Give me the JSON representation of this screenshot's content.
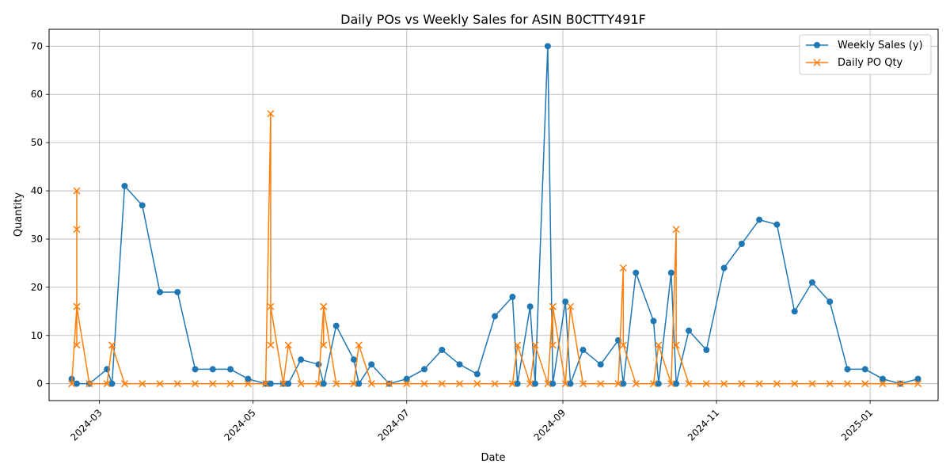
{
  "chart_data": {
    "type": "line",
    "title": "Daily POs vs Weekly Sales for ASIN B0CTTY491F",
    "xlabel": "Date",
    "ylabel": "Quantity",
    "x_type": "date",
    "xlim": [
      "2024-02-10",
      "2025-01-28"
    ],
    "ylim": [
      -3.5,
      73.5
    ],
    "x_ticks": [
      "2024-03-01",
      "2024-05-01",
      "2024-07-01",
      "2024-09-01",
      "2024-11-01",
      "2025-01-01"
    ],
    "x_tick_labels": [
      "2024-03",
      "2024-05",
      "2024-07",
      "2024-09",
      "2024-11",
      "2025-01"
    ],
    "y_ticks": [
      0,
      10,
      20,
      30,
      40,
      50,
      60,
      70
    ],
    "y_tick_labels": [
      "0",
      "10",
      "20",
      "30",
      "40",
      "50",
      "60",
      "70"
    ],
    "grid": true,
    "legend_position": "top-right",
    "series": [
      {
        "name": "Weekly Sales (y)",
        "color": "#1f77b4",
        "marker": "circle",
        "points": [
          [
            "2024-02-19",
            1
          ],
          [
            "2024-02-21",
            0
          ],
          [
            "2024-02-26",
            0
          ],
          [
            "2024-03-04",
            3
          ],
          [
            "2024-03-06",
            0
          ],
          [
            "2024-03-11",
            41
          ],
          [
            "2024-03-18",
            37
          ],
          [
            "2024-03-25",
            19
          ],
          [
            "2024-04-01",
            19
          ],
          [
            "2024-04-08",
            3
          ],
          [
            "2024-04-15",
            3
          ],
          [
            "2024-04-22",
            3
          ],
          [
            "2024-04-29",
            1
          ],
          [
            "2024-05-06",
            0
          ],
          [
            "2024-05-08",
            0
          ],
          [
            "2024-05-13",
            0
          ],
          [
            "2024-05-15",
            0
          ],
          [
            "2024-05-20",
            5
          ],
          [
            "2024-05-27",
            4
          ],
          [
            "2024-05-29",
            0
          ],
          [
            "2024-06-03",
            12
          ],
          [
            "2024-06-10",
            5
          ],
          [
            "2024-06-12",
            0
          ],
          [
            "2024-06-17",
            4
          ],
          [
            "2024-06-24",
            0
          ],
          [
            "2024-07-01",
            1
          ],
          [
            "2024-07-08",
            3
          ],
          [
            "2024-07-15",
            7
          ],
          [
            "2024-07-22",
            4
          ],
          [
            "2024-07-29",
            2
          ],
          [
            "2024-08-05",
            14
          ],
          [
            "2024-08-12",
            18
          ],
          [
            "2024-08-14",
            0
          ],
          [
            "2024-08-19",
            16
          ],
          [
            "2024-08-21",
            0
          ],
          [
            "2024-08-26",
            70
          ],
          [
            "2024-08-28",
            0
          ],
          [
            "2024-09-02",
            17
          ],
          [
            "2024-09-04",
            0
          ],
          [
            "2024-09-09",
            7
          ],
          [
            "2024-09-16",
            4
          ],
          [
            "2024-09-23",
            9
          ],
          [
            "2024-09-25",
            0
          ],
          [
            "2024-09-30",
            23
          ],
          [
            "2024-10-07",
            13
          ],
          [
            "2024-10-09",
            0
          ],
          [
            "2024-10-14",
            23
          ],
          [
            "2024-10-16",
            0
          ],
          [
            "2024-10-21",
            11
          ],
          [
            "2024-10-28",
            7
          ],
          [
            "2024-11-04",
            24
          ],
          [
            "2024-11-11",
            29
          ],
          [
            "2024-11-18",
            34
          ],
          [
            "2024-11-25",
            33
          ],
          [
            "2024-12-02",
            15
          ],
          [
            "2024-12-09",
            21
          ],
          [
            "2024-12-16",
            17
          ],
          [
            "2024-12-23",
            3
          ],
          [
            "2024-12-30",
            3
          ],
          [
            "2025-01-06",
            1
          ],
          [
            "2025-01-13",
            0
          ],
          [
            "2025-01-20",
            1
          ]
        ]
      },
      {
        "name": "Daily PO Qty",
        "color": "#ff7f0e",
        "marker": "x",
        "points": [
          [
            "2024-02-19",
            0
          ],
          [
            "2024-02-21",
            16
          ],
          [
            "2024-02-21",
            32
          ],
          [
            "2024-02-21",
            40
          ],
          [
            "2024-02-21",
            8
          ],
          [
            "2024-02-21",
            16
          ],
          [
            "2024-02-26",
            0
          ],
          [
            "2024-03-04",
            0
          ],
          [
            "2024-03-06",
            8
          ],
          [
            "2024-03-06",
            8
          ],
          [
            "2024-03-11",
            0
          ],
          [
            "2024-03-18",
            0
          ],
          [
            "2024-03-25",
            0
          ],
          [
            "2024-04-01",
            0
          ],
          [
            "2024-04-08",
            0
          ],
          [
            "2024-04-15",
            0
          ],
          [
            "2024-04-22",
            0
          ],
          [
            "2024-04-29",
            0
          ],
          [
            "2024-05-06",
            0
          ],
          [
            "2024-05-08",
            56
          ],
          [
            "2024-05-08",
            8
          ],
          [
            "2024-05-08",
            16
          ],
          [
            "2024-05-13",
            0
          ],
          [
            "2024-05-15",
            8
          ],
          [
            "2024-05-20",
            0
          ],
          [
            "2024-05-27",
            0
          ],
          [
            "2024-05-29",
            16
          ],
          [
            "2024-05-29",
            8
          ],
          [
            "2024-05-29",
            16
          ],
          [
            "2024-06-03",
            0
          ],
          [
            "2024-06-10",
            0
          ],
          [
            "2024-06-12",
            8
          ],
          [
            "2024-06-17",
            0
          ],
          [
            "2024-06-24",
            0
          ],
          [
            "2024-07-01",
            0
          ],
          [
            "2024-07-08",
            0
          ],
          [
            "2024-07-15",
            0
          ],
          [
            "2024-07-22",
            0
          ],
          [
            "2024-07-29",
            0
          ],
          [
            "2024-08-05",
            0
          ],
          [
            "2024-08-12",
            0
          ],
          [
            "2024-08-14",
            8
          ],
          [
            "2024-08-19",
            0
          ],
          [
            "2024-08-21",
            8
          ],
          [
            "2024-08-26",
            0
          ],
          [
            "2024-08-28",
            16
          ],
          [
            "2024-08-28",
            8
          ],
          [
            "2024-08-28",
            16
          ],
          [
            "2024-09-02",
            0
          ],
          [
            "2024-09-04",
            16
          ],
          [
            "2024-09-09",
            0
          ],
          [
            "2024-09-16",
            0
          ],
          [
            "2024-09-23",
            0
          ],
          [
            "2024-09-25",
            24
          ],
          [
            "2024-09-25",
            8
          ],
          [
            "2024-09-30",
            0
          ],
          [
            "2024-10-07",
            0
          ],
          [
            "2024-10-09",
            8
          ],
          [
            "2024-10-14",
            0
          ],
          [
            "2024-10-16",
            32
          ],
          [
            "2024-10-16",
            8
          ],
          [
            "2024-10-21",
            0
          ],
          [
            "2024-10-28",
            0
          ],
          [
            "2024-11-04",
            0
          ],
          [
            "2024-11-11",
            0
          ],
          [
            "2024-11-18",
            0
          ],
          [
            "2024-11-25",
            0
          ],
          [
            "2024-12-02",
            0
          ],
          [
            "2024-12-09",
            0
          ],
          [
            "2024-12-16",
            0
          ],
          [
            "2024-12-23",
            0
          ],
          [
            "2024-12-30",
            0
          ],
          [
            "2025-01-06",
            0
          ],
          [
            "2025-01-13",
            0
          ],
          [
            "2025-01-20",
            0
          ]
        ]
      }
    ]
  }
}
